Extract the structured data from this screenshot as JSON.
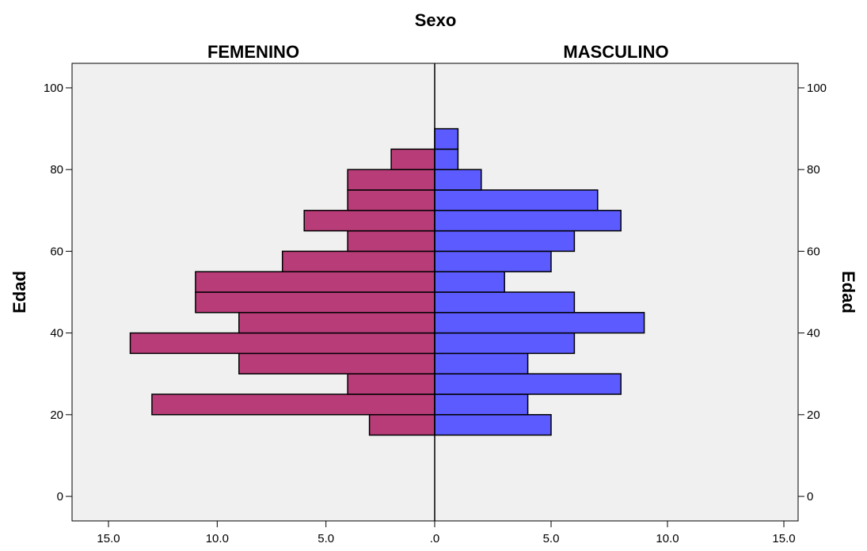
{
  "chart_data": {
    "type": "bar",
    "subtype": "population-pyramid",
    "title": "Sexo",
    "ylabel": "Edad",
    "ylim": [
      -6,
      106
    ],
    "yticks": [
      0,
      20,
      40,
      60,
      80,
      100
    ],
    "ytick_labels": [
      "0",
      "20",
      "40",
      "60",
      "80",
      "100"
    ],
    "xlim": [
      0,
      15
    ],
    "xticks_left": [
      15,
      10,
      5,
      0
    ],
    "xtick_labels_left": [
      "15.0",
      "10.0",
      "5.0",
      ".0"
    ],
    "xticks_right": [
      5,
      10,
      15
    ],
    "xtick_labels_right": [
      "5.0",
      "10.0",
      "15.0"
    ],
    "bins": [
      {
        "from": 15,
        "to": 20
      },
      {
        "from": 20,
        "to": 25
      },
      {
        "from": 25,
        "to": 30
      },
      {
        "from": 30,
        "to": 35
      },
      {
        "from": 35,
        "to": 40
      },
      {
        "from": 40,
        "to": 45
      },
      {
        "from": 45,
        "to": 50
      },
      {
        "from": 50,
        "to": 55
      },
      {
        "from": 55,
        "to": 60
      },
      {
        "from": 60,
        "to": 65
      },
      {
        "from": 65,
        "to": 70
      },
      {
        "from": 70,
        "to": 75
      },
      {
        "from": 75,
        "to": 80
      },
      {
        "from": 80,
        "to": 85
      },
      {
        "from": 85,
        "to": 90
      }
    ],
    "series": [
      {
        "name": "FEMENINO",
        "side": "left",
        "color": "#b83c78",
        "values": [
          3,
          13,
          4,
          9,
          14,
          9,
          11,
          11,
          7,
          4,
          6,
          4,
          4,
          2,
          0
        ]
      },
      {
        "name": "MASCULINO",
        "side": "right",
        "color": "#5b5bff",
        "values": [
          5,
          4,
          8,
          4,
          6,
          9,
          6,
          3,
          5,
          6,
          8,
          7,
          2,
          1,
          1
        ]
      }
    ],
    "grid": false,
    "legend": "none",
    "colors": {
      "plot_background": "#f0f0f0",
      "bar_stroke": "#000000"
    }
  }
}
